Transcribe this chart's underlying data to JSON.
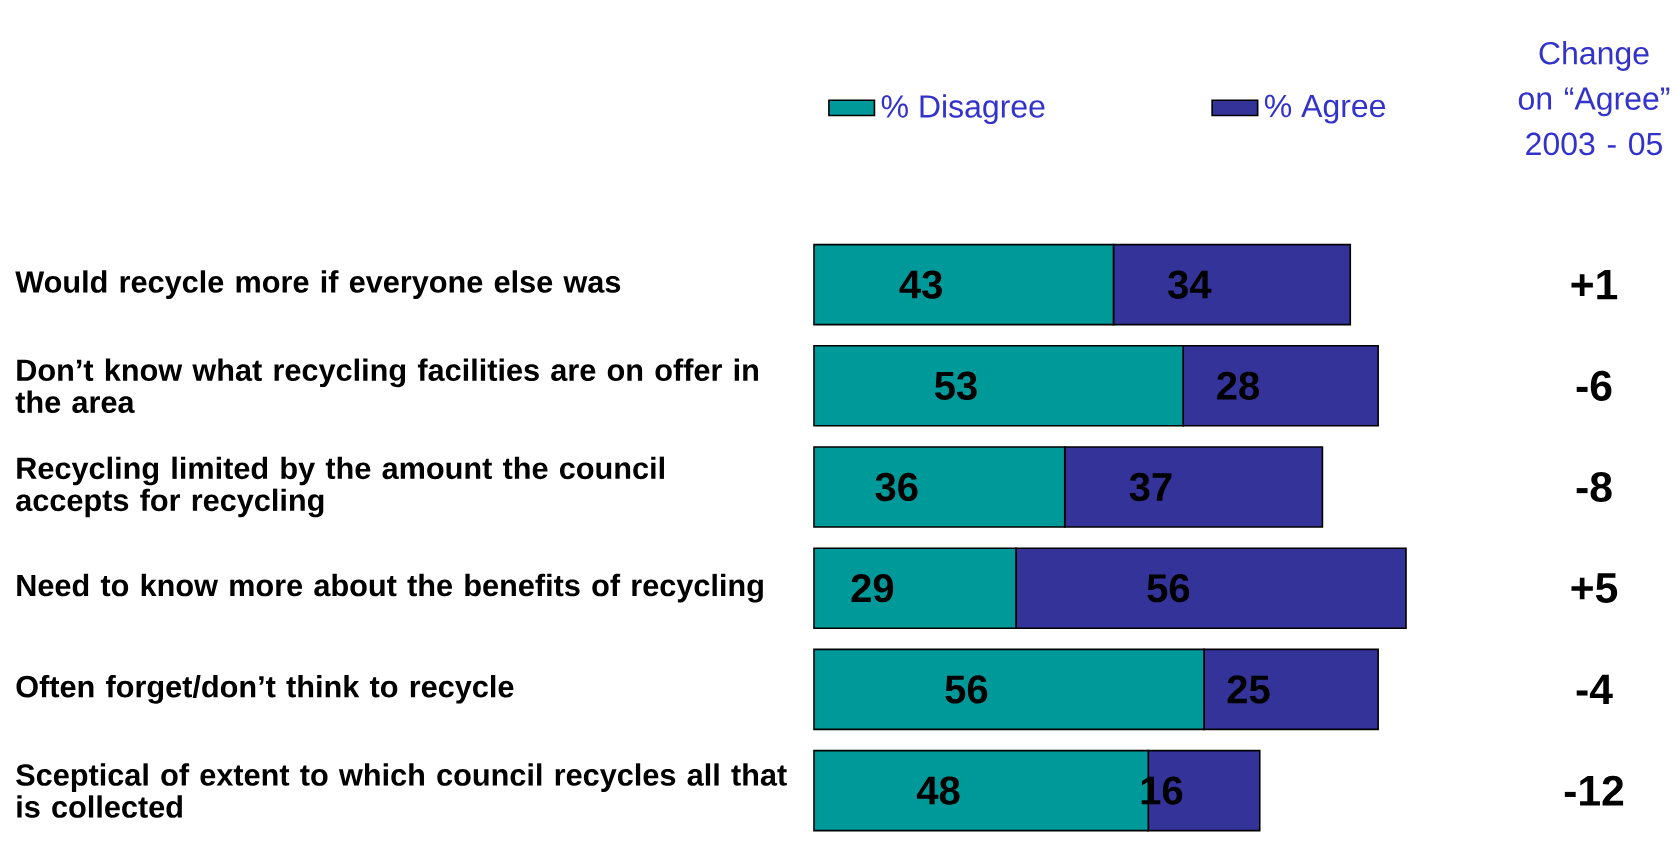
{
  "chart_data": {
    "type": "bar",
    "orientation": "horizontal",
    "stacked": true,
    "data_labels": true,
    "legend": "top",
    "categories": [
      "Would recycle more if everyone else was",
      "Don’t know what recycling facilities are on offer in the area",
      "Recycling limited by the amount the council accepts for recycling",
      "Need to know more about the benefits of recycling",
      "Often forget/don’t think to recycle",
      "Sceptical of extent to which council recycles all that is collected"
    ],
    "series": [
      {
        "name": "% Disagree",
        "color": "#009999",
        "values": [
          43,
          53,
          36,
          29,
          56,
          48
        ]
      },
      {
        "name": "% Agree",
        "color": "#333399",
        "values": [
          34,
          28,
          37,
          56,
          25,
          16
        ]
      }
    ],
    "annotations": [
      "Change on “Agree” 2003 - 05",
      "+1",
      "-6",
      "-8",
      "+5",
      "-4",
      "-12"
    ]
  }
}
